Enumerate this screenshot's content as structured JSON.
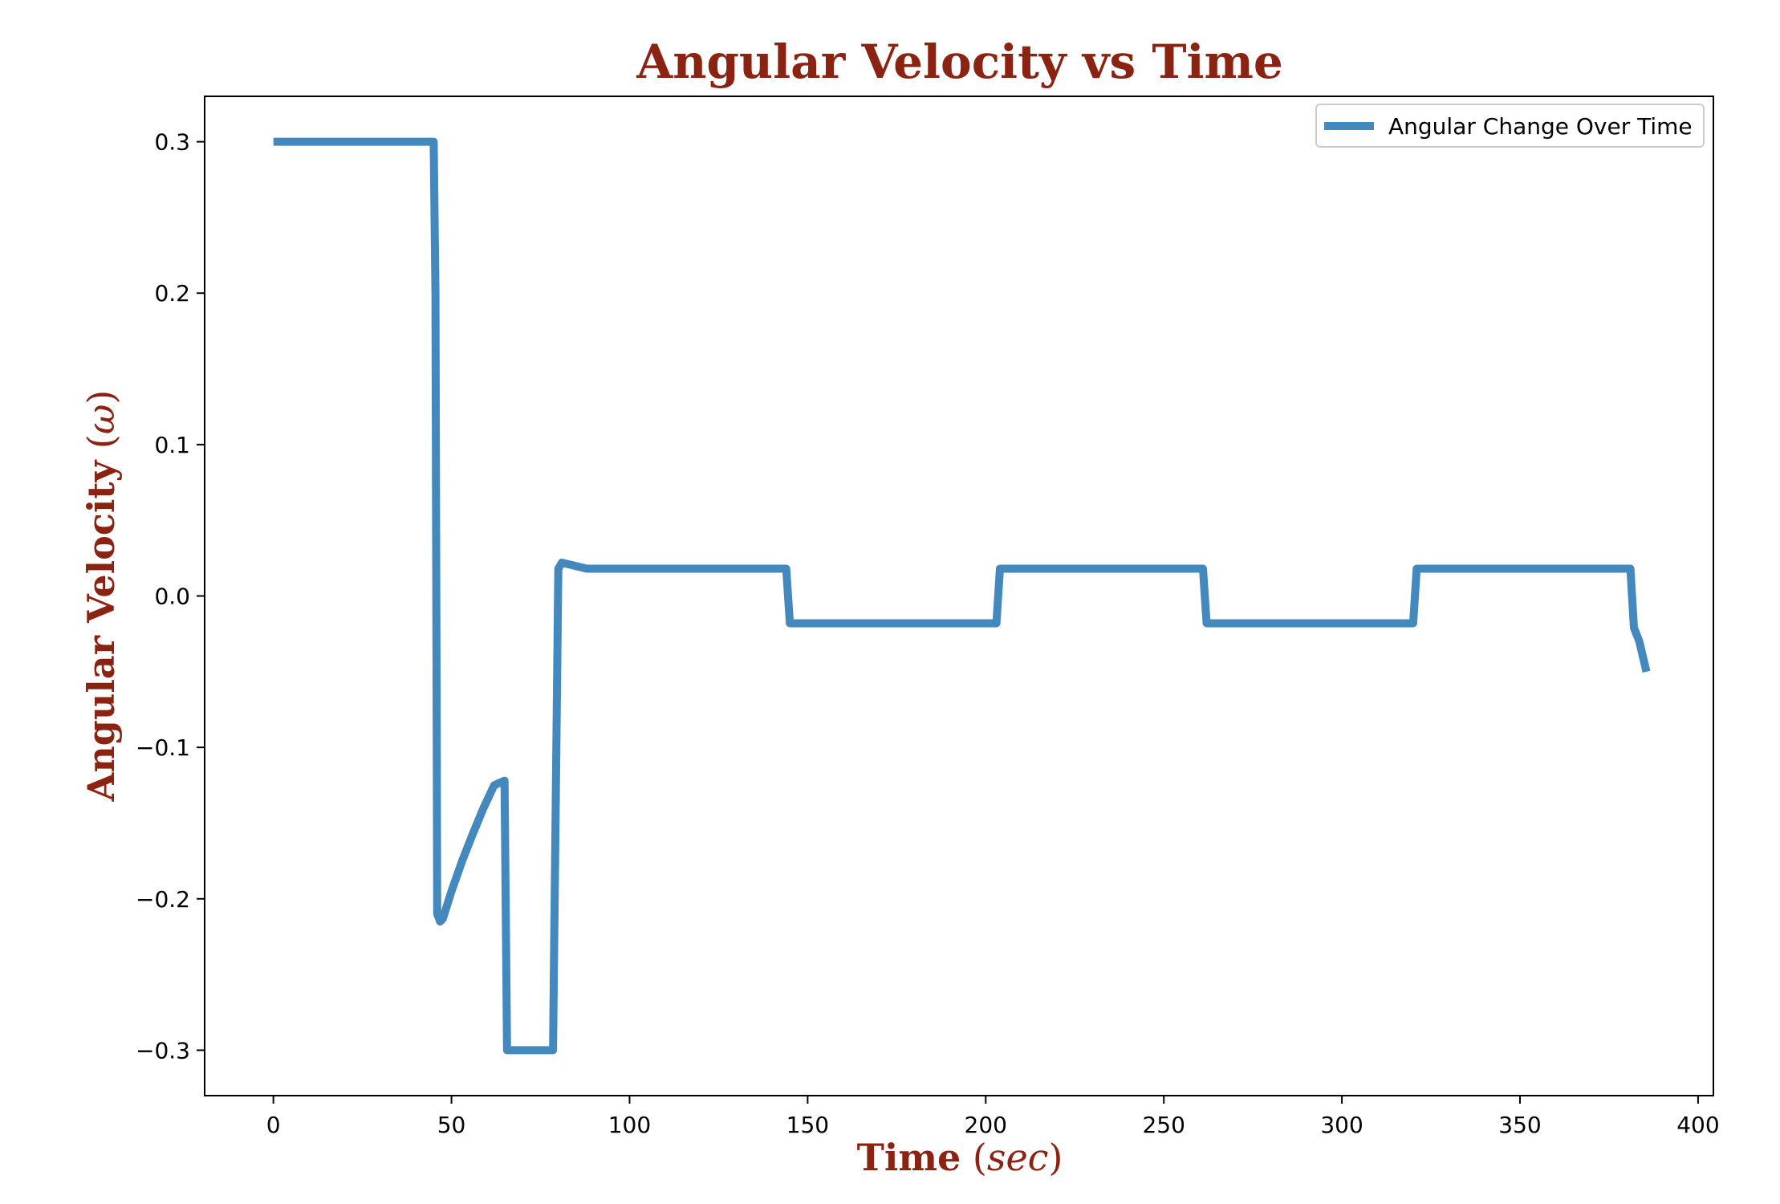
{
  "chart_data": {
    "type": "line",
    "title": "Angular Velocity vs Time",
    "xlabel": "Time",
    "xlabel_unit": "sec",
    "ylabel": "Angular Velocity",
    "ylabel_unit": "ω",
    "xlim": [
      -19.3,
      404.3
    ],
    "ylim": [
      -0.33,
      0.33
    ],
    "xticks": [
      0,
      50,
      100,
      150,
      200,
      250,
      300,
      350,
      400
    ],
    "xtick_labels": [
      "0",
      "50",
      "100",
      "150",
      "200",
      "250",
      "300",
      "350",
      "400"
    ],
    "yticks": [
      0.3,
      0.2,
      0.1,
      0.0,
      -0.1,
      -0.2,
      -0.3
    ],
    "ytick_labels": [
      "0.3",
      "0.2",
      "0.1",
      "0.0",
      "−0.1",
      "−0.2",
      "−0.3"
    ],
    "grid": false,
    "legend_position": "top-right",
    "colors": {
      "line": "#4389BD",
      "title": "#8B2312",
      "axes": "#000000"
    },
    "series": [
      {
        "name": "Angular Change Over Time",
        "x": [
          0,
          45,
          45.5,
          46,
          46.8,
          47.6,
          50,
          53,
          56,
          59,
          62,
          64.9,
          65.6,
          70,
          78.5,
          80,
          81,
          88,
          144,
          145,
          203,
          204,
          261,
          262,
          320,
          321,
          381,
          382,
          383.5,
          384.5,
          385.5
        ],
        "y": [
          0.3,
          0.3,
          0.2,
          -0.21,
          -0.215,
          -0.213,
          -0.195,
          -0.175,
          -0.157,
          -0.14,
          -0.125,
          -0.122,
          -0.3,
          -0.3,
          -0.3,
          0.018,
          0.022,
          0.018,
          0.018,
          -0.018,
          -0.018,
          0.018,
          0.018,
          -0.018,
          -0.018,
          0.018,
          0.018,
          -0.021,
          -0.03,
          -0.04,
          -0.05
        ]
      }
    ]
  }
}
